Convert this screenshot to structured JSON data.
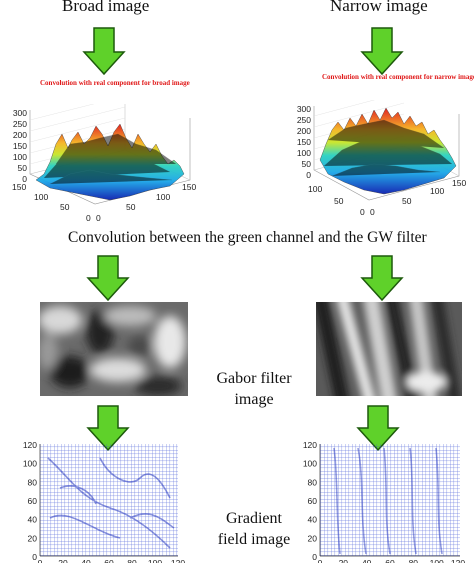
{
  "columns": {
    "left_title": "Broad image",
    "right_title": "Narrow image"
  },
  "surface_plots": {
    "left": {
      "caption": "Convolution with real component for broad image",
      "z_ticks": [
        "300",
        "250",
        "200",
        "150",
        "100",
        "50",
        "0"
      ],
      "x_ticks": [
        "150",
        "100",
        "50",
        "0"
      ],
      "y_ticks": [
        "0",
        "50",
        "100",
        "150"
      ]
    },
    "right": {
      "caption": "Convolution with real component for narrow image",
      "z_ticks": [
        "300",
        "250",
        "200",
        "150",
        "100",
        "50",
        "0"
      ],
      "x_ticks": [
        "100",
        "50",
        "0"
      ],
      "y_ticks": [
        "0",
        "50",
        "100",
        "150"
      ]
    }
  },
  "middle_caption": "Convolution between the green channel and the GW filter",
  "gabor_label": [
    "Gabor filter",
    "image"
  ],
  "gradient_label": [
    "Gradient",
    "field image"
  ],
  "gradient_plots": {
    "left": {
      "y_ticks": [
        "120",
        "100",
        "80",
        "60",
        "40",
        "20",
        "0"
      ],
      "x_ticks": [
        "0",
        "20",
        "40",
        "60",
        "80",
        "100",
        "120"
      ]
    },
    "right": {
      "y_ticks": [
        "120",
        "100",
        "80",
        "60",
        "40",
        "20",
        "0"
      ],
      "x_ticks": [
        "0",
        "20",
        "40",
        "60",
        "80",
        "100",
        "120"
      ]
    }
  },
  "colors": {
    "arrow_fill": "#5fd12a",
    "arrow_stroke": "#1d5a0c",
    "caption_red": "#e01818",
    "vector_blue": "#3a4fd4"
  }
}
